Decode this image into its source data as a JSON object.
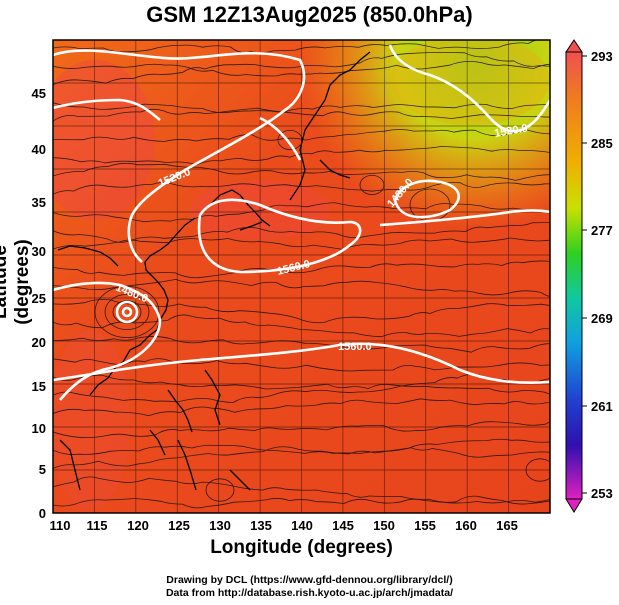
{
  "title": "GSM 12Z13Aug2025 (850.0hPa)",
  "axes": {
    "xlabel": "Longitude (degrees)",
    "ylabel": "Latitude  (degrees)",
    "xticks": [
      "110",
      "115",
      "120",
      "125",
      "130",
      "135",
      "140",
      "145",
      "150",
      "155",
      "160",
      "165"
    ],
    "yticks": [
      "0",
      "5",
      "10",
      "15",
      "20",
      "25",
      "30",
      "35",
      "40",
      "45"
    ]
  },
  "colorbar": {
    "labels": [
      "293",
      "285",
      "277",
      "269",
      "261",
      "253"
    ]
  },
  "contour_labels": [
    "1520.0",
    "1560.0",
    "1480.0",
    "1560.0",
    "1480.0",
    "1520.0",
    "1520.0"
  ],
  "credits": {
    "line1": "Drawing by DCL (https://www.gfd-dennou.org/library/dcl/)",
    "line2": "Data from http://database.rish.kyoto-u.ac.jp/arch/jmadata/"
  },
  "chart_data": {
    "type": "heatmap",
    "title": "GSM 12Z13Aug2025 (850.0hPa)",
    "xlabel": "Longitude (degrees)",
    "ylabel": "Latitude  (degrees)",
    "xlim": [
      110,
      170
    ],
    "ylim": [
      0,
      50
    ],
    "colorbar_range": [
      253,
      293
    ],
    "colorbar_ticks": [
      253,
      261,
      269,
      277,
      285,
      293
    ],
    "grid": true,
    "overlays": [
      "streamlines",
      "white contour lines (geopotential height)",
      "coastlines"
    ],
    "contour_levels": [
      1480.0,
      1520.0,
      1560.0
    ]
  },
  "colors": {
    "warm": "#e8401a",
    "cool_green": "#9ed81a",
    "contour": "#ffffff"
  }
}
